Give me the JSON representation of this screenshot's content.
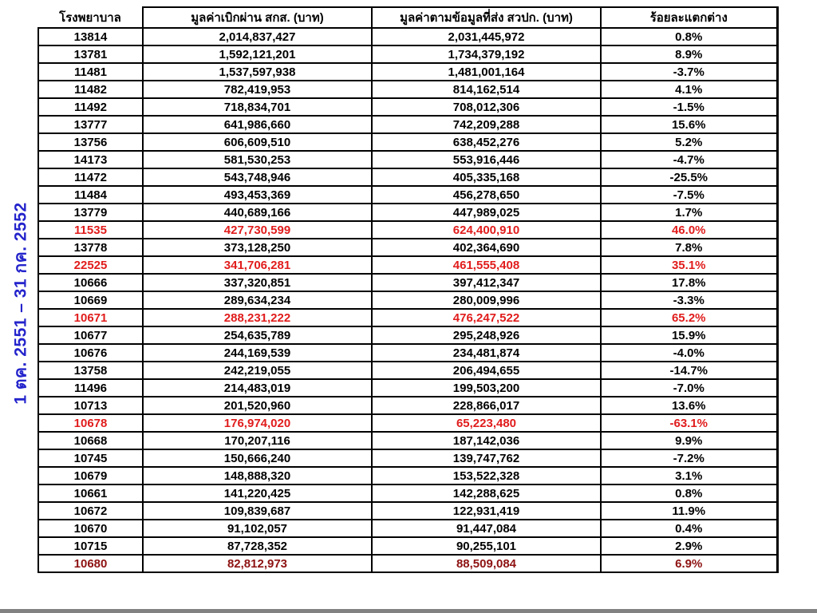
{
  "period_label": "1 ตค. 2551 – 31 กค. 2552",
  "colors": {
    "highlight_red": "#e11c1c",
    "highlight_dark_red": "#8e1212",
    "label_blue": "#2424cc",
    "border_black": "#000000"
  },
  "table": {
    "headers": [
      "โรงพยาบาล",
      "มูลค่าเบิกผ่าน สกส. (บาท)",
      "มูลค่าตามข้อมูลที่ส่ง สวปก. (บาท)",
      "ร้อยละแตกต่าง"
    ],
    "rows": [
      {
        "hospital": "13814",
        "sks": "2,014,837,427",
        "svpk": "2,031,445,972",
        "diff": "0.8%",
        "highlight": "none"
      },
      {
        "hospital": "13781",
        "sks": "1,592,121,201",
        "svpk": "1,734,379,192",
        "diff": "8.9%",
        "highlight": "none"
      },
      {
        "hospital": "11481",
        "sks": "1,537,597,938",
        "svpk": "1,481,001,164",
        "diff": "-3.7%",
        "highlight": "none"
      },
      {
        "hospital": "11482",
        "sks": "782,419,953",
        "svpk": "814,162,514",
        "diff": "4.1%",
        "highlight": "none"
      },
      {
        "hospital": "11492",
        "sks": "718,834,701",
        "svpk": "708,012,306",
        "diff": "-1.5%",
        "highlight": "none"
      },
      {
        "hospital": "13777",
        "sks": "641,986,660",
        "svpk": "742,209,288",
        "diff": "15.6%",
        "highlight": "none"
      },
      {
        "hospital": "13756",
        "sks": "606,609,510",
        "svpk": "638,452,276",
        "diff": "5.2%",
        "highlight": "none"
      },
      {
        "hospital": "14173",
        "sks": "581,530,253",
        "svpk": "553,916,446",
        "diff": "-4.7%",
        "highlight": "none"
      },
      {
        "hospital": "11472",
        "sks": "543,748,946",
        "svpk": "405,335,168",
        "diff": "-25.5%",
        "highlight": "none"
      },
      {
        "hospital": "11484",
        "sks": "493,453,369",
        "svpk": "456,278,650",
        "diff": "-7.5%",
        "highlight": "none"
      },
      {
        "hospital": "13779",
        "sks": "440,689,166",
        "svpk": "447,989,025",
        "diff": "1.7%",
        "highlight": "none"
      },
      {
        "hospital": "11535",
        "sks": "427,730,599",
        "svpk": "624,400,910",
        "diff": "46.0%",
        "highlight": "red"
      },
      {
        "hospital": "13778",
        "sks": "373,128,250",
        "svpk": "402,364,690",
        "diff": "7.8%",
        "highlight": "none"
      },
      {
        "hospital": "22525",
        "sks": "341,706,281",
        "svpk": "461,555,408",
        "diff": "35.1%",
        "highlight": "red"
      },
      {
        "hospital": "10666",
        "sks": "337,320,851",
        "svpk": "397,412,347",
        "diff": "17.8%",
        "highlight": "none"
      },
      {
        "hospital": "10669",
        "sks": "289,634,234",
        "svpk": "280,009,996",
        "diff": "-3.3%",
        "highlight": "none"
      },
      {
        "hospital": "10671",
        "sks": "288,231,222",
        "svpk": "476,247,522",
        "diff": "65.2%",
        "highlight": "red"
      },
      {
        "hospital": "10677",
        "sks": "254,635,789",
        "svpk": "295,248,926",
        "diff": "15.9%",
        "highlight": "none"
      },
      {
        "hospital": "10676",
        "sks": "244,169,539",
        "svpk": "234,481,874",
        "diff": "-4.0%",
        "highlight": "none"
      },
      {
        "hospital": "13758",
        "sks": "242,219,055",
        "svpk": "206,494,655",
        "diff": "-14.7%",
        "highlight": "none"
      },
      {
        "hospital": "11496",
        "sks": "214,483,019",
        "svpk": "199,503,200",
        "diff": "-7.0%",
        "highlight": "none"
      },
      {
        "hospital": "10713",
        "sks": "201,520,960",
        "svpk": "228,866,017",
        "diff": "13.6%",
        "highlight": "none"
      },
      {
        "hospital": "10678",
        "sks": "176,974,020",
        "svpk": "65,223,480",
        "diff": "-63.1%",
        "highlight": "red"
      },
      {
        "hospital": "10668",
        "sks": "170,207,116",
        "svpk": "187,142,036",
        "diff": "9.9%",
        "highlight": "none"
      },
      {
        "hospital": "10745",
        "sks": "150,666,240",
        "svpk": "139,747,762",
        "diff": "-7.2%",
        "highlight": "none"
      },
      {
        "hospital": "10679",
        "sks": "148,888,320",
        "svpk": "153,522,328",
        "diff": "3.1%",
        "highlight": "none"
      },
      {
        "hospital": "10661",
        "sks": "141,220,425",
        "svpk": "142,288,625",
        "diff": "0.8%",
        "highlight": "none"
      },
      {
        "hospital": "10672",
        "sks": "109,839,687",
        "svpk": "122,931,419",
        "diff": "11.9%",
        "highlight": "none"
      },
      {
        "hospital": "10670",
        "sks": "91,102,057",
        "svpk": "91,447,084",
        "diff": "0.4%",
        "highlight": "none"
      },
      {
        "hospital": "10715",
        "sks": "87,728,352",
        "svpk": "90,255,101",
        "diff": "2.9%",
        "highlight": "none"
      },
      {
        "hospital": "10680",
        "sks": "82,812,973",
        "svpk": "88,509,084",
        "diff": "6.9%",
        "highlight": "dark-red"
      }
    ]
  }
}
